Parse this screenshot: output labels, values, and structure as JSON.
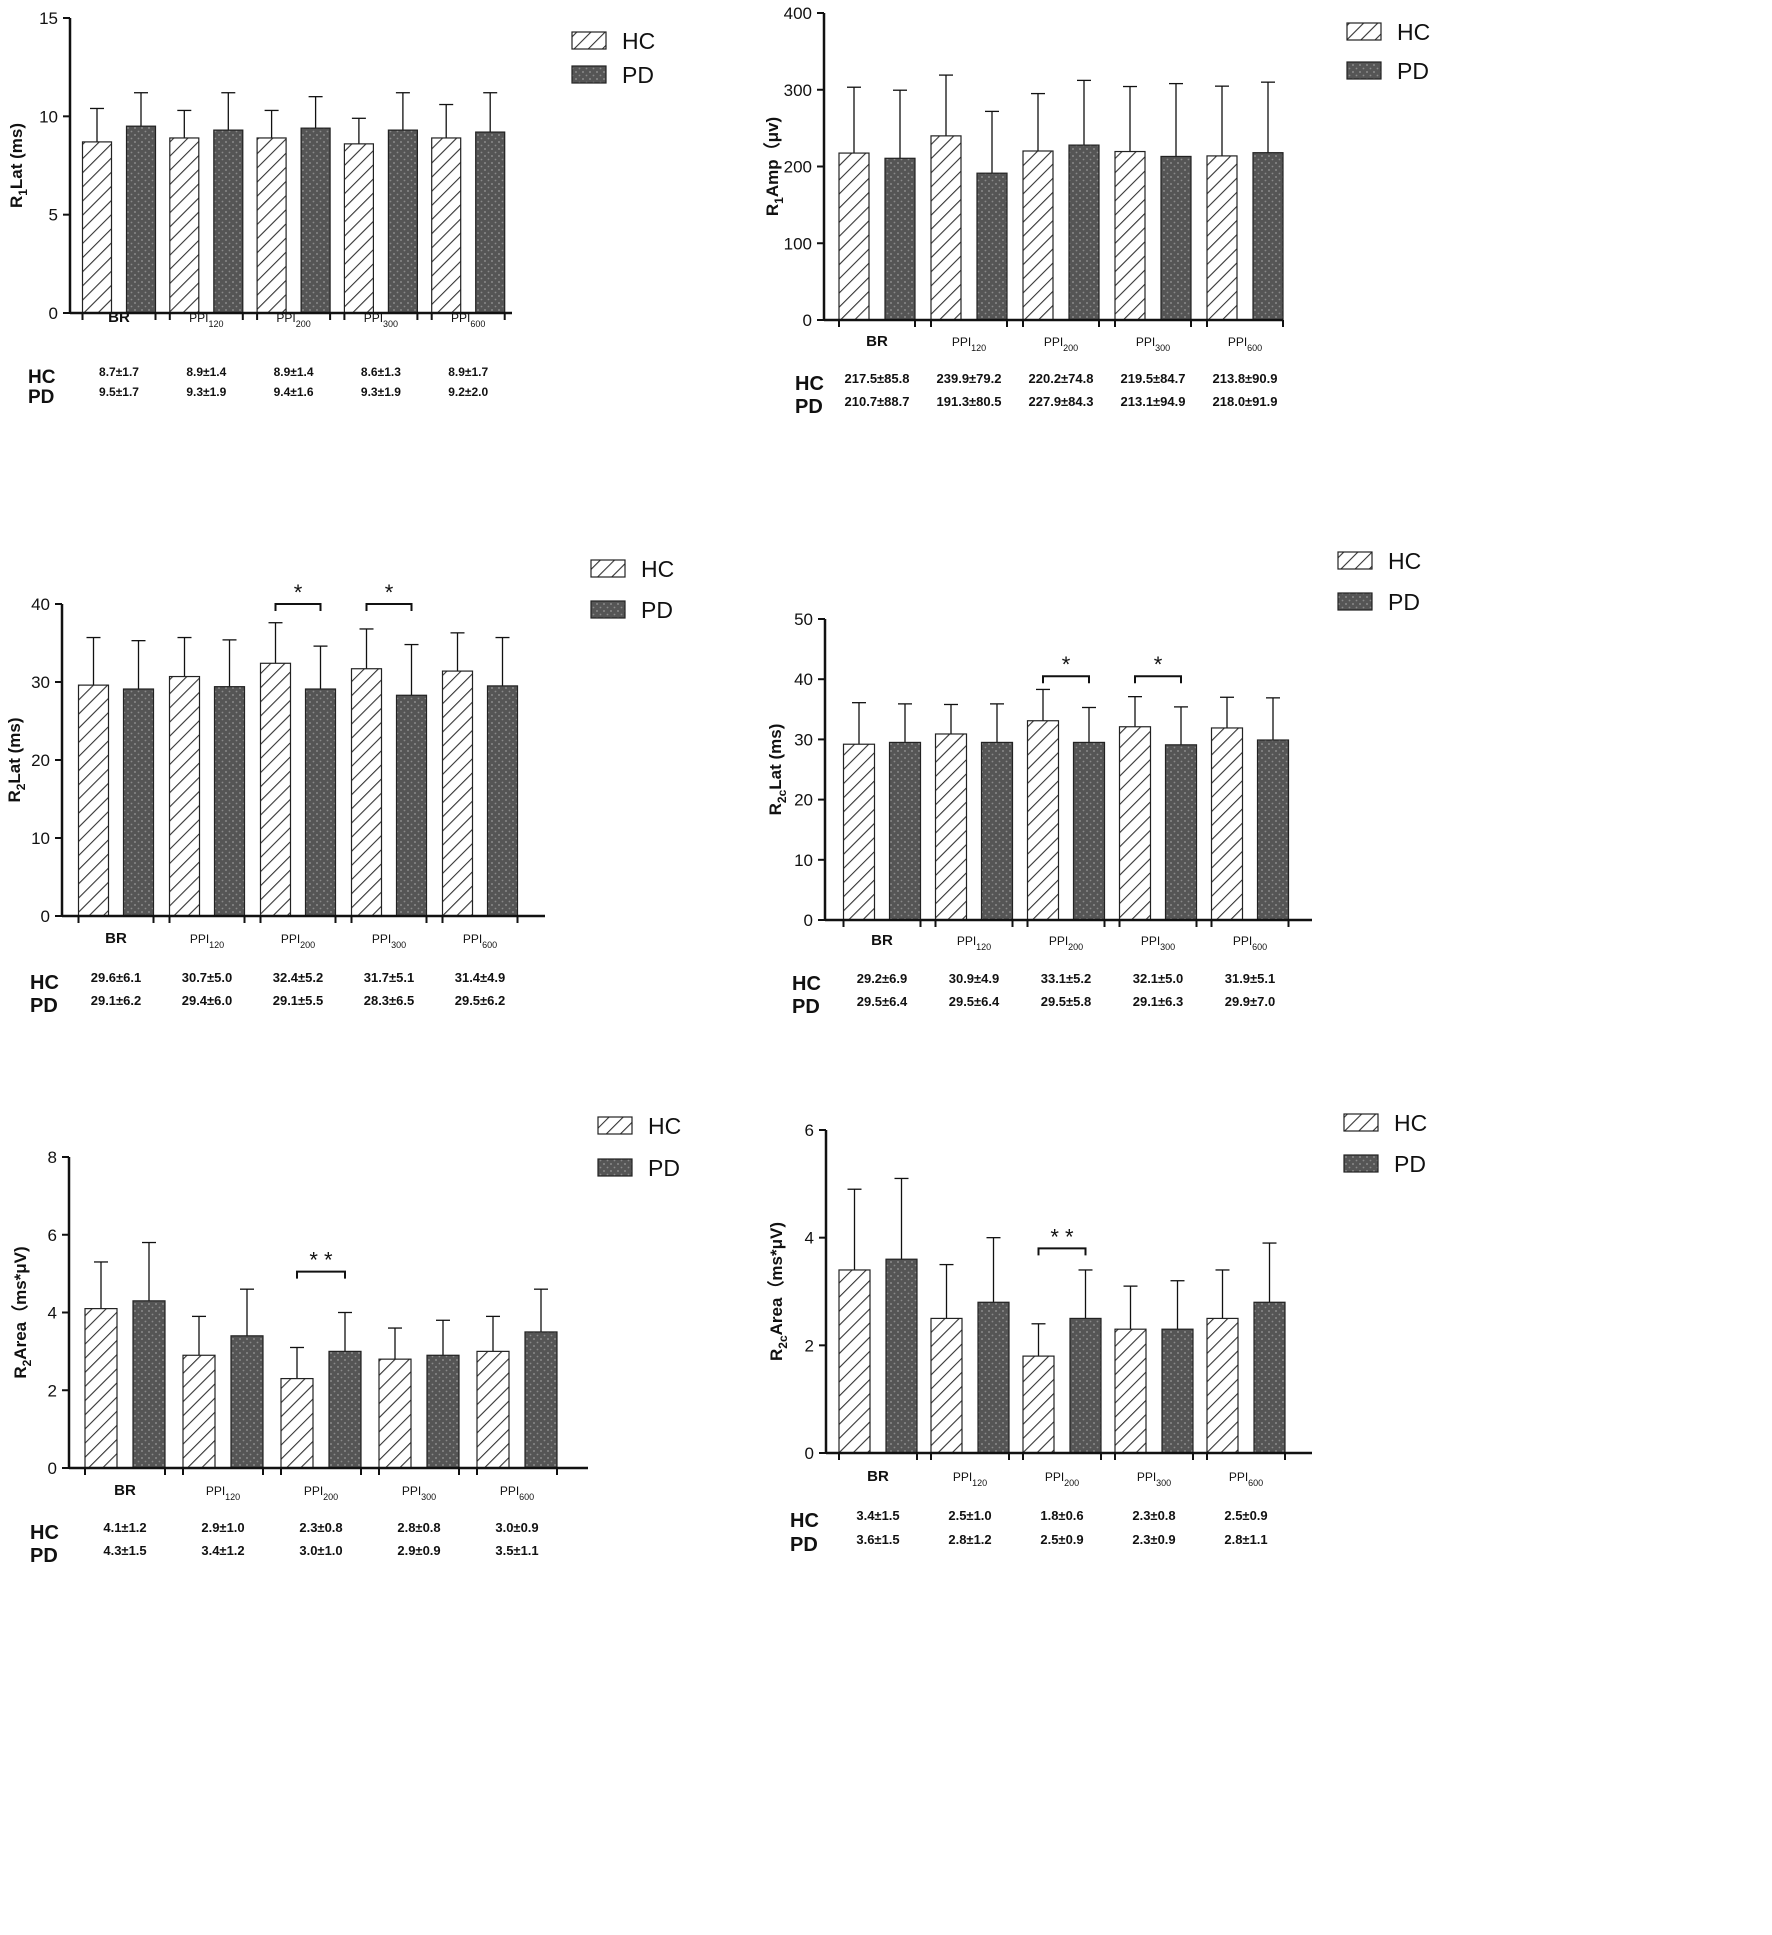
{
  "colors": {
    "hc_fill": "#ffffff",
    "pd_fill": "#555555",
    "axis": "#111111",
    "hatch": "#333333"
  },
  "legend_labels": {
    "hc": "HC",
    "pd": "PD"
  },
  "chart_data": [
    {
      "type": "bar",
      "ylabel": "R1Lat (ms)",
      "ylabel_main": "R",
      "ylabel_sub": "1",
      "ylabel_rest": "Lat (ms)",
      "ylim": [
        0,
        15
      ],
      "yticks": [
        0,
        5,
        10,
        15
      ],
      "categories": [
        "BR",
        "PPI120",
        "PPI200",
        "PPI300",
        "PPI600"
      ],
      "cat_main": [
        "BR",
        "PPI",
        "PPI",
        "PPI",
        "PPI"
      ],
      "cat_sub": [
        "",
        "120",
        "200",
        "300",
        "600"
      ],
      "series": [
        {
          "name": "HC",
          "values": [
            8.7,
            8.9,
            8.9,
            8.6,
            8.9
          ],
          "errors": [
            1.7,
            1.4,
            1.4,
            1.3,
            1.7
          ]
        },
        {
          "name": "PD",
          "values": [
            9.5,
            9.3,
            9.4,
            9.3,
            9.2
          ],
          "errors": [
            1.7,
            1.9,
            1.6,
            1.9,
            2.0
          ]
        }
      ],
      "significance": [],
      "table": {
        "hc_label": "HC",
        "pd_label": "PD",
        "hc": [
          "8.7±1.7",
          "8.9±1.4",
          "8.9±1.4",
          "8.6±1.3",
          "8.9±1.7"
        ],
        "pd": [
          "9.5±1.7",
          "9.3±1.9",
          "9.4±1.6",
          "9.3±1.9",
          "9.2±2.0"
        ]
      }
    },
    {
      "type": "bar",
      "ylabel": "R1Amp (μv)",
      "ylabel_main": "R",
      "ylabel_sub": "1",
      "ylabel_rest": "Amp（μv)",
      "ylim": [
        0,
        400
      ],
      "yticks": [
        0,
        100,
        200,
        300,
        400
      ],
      "categories": [
        "BR",
        "PPI120",
        "PPI200",
        "PPI300",
        "PPI600"
      ],
      "cat_main": [
        "BR",
        "PPI",
        "PPI",
        "PPI",
        "PPI"
      ],
      "cat_sub": [
        "",
        "120",
        "200",
        "300",
        "600"
      ],
      "series": [
        {
          "name": "HC",
          "values": [
            217.5,
            239.9,
            220.2,
            219.5,
            213.8
          ],
          "errors": [
            85.8,
            79.2,
            74.8,
            84.7,
            90.9
          ]
        },
        {
          "name": "PD",
          "values": [
            210.7,
            191.3,
            227.9,
            213.1,
            218.0
          ],
          "errors": [
            88.7,
            80.5,
            84.3,
            94.9,
            91.9
          ]
        }
      ],
      "significance": [],
      "table": {
        "hc_label": "HC",
        "pd_label": "PD",
        "hc": [
          "217.5±85.8",
          "239.9±79.2",
          "220.2±74.8",
          "219.5±84.7",
          "213.8±90.9"
        ],
        "pd": [
          "210.7±88.7",
          "191.3±80.5",
          "227.9±84.3",
          "213.1±94.9",
          "218.0±91.9"
        ]
      }
    },
    {
      "type": "bar",
      "ylabel": "R2Lat (ms)",
      "ylabel_main": "R",
      "ylabel_sub": "2",
      "ylabel_rest": "Lat (ms)",
      "ylim": [
        0,
        40
      ],
      "yticks": [
        0,
        10,
        20,
        30,
        40
      ],
      "categories": [
        "BR",
        "PPI120",
        "PPI200",
        "PPI300",
        "PPI600"
      ],
      "cat_main": [
        "BR",
        "PPI",
        "PPI",
        "PPI",
        "PPI"
      ],
      "cat_sub": [
        "",
        "120",
        "200",
        "300",
        "600"
      ],
      "series": [
        {
          "name": "HC",
          "values": [
            29.6,
            30.7,
            32.4,
            31.7,
            31.4
          ],
          "errors": [
            6.1,
            5.0,
            5.2,
            5.1,
            4.9
          ]
        },
        {
          "name": "PD",
          "values": [
            29.1,
            29.4,
            29.1,
            28.3,
            29.5
          ],
          "errors": [
            6.2,
            6.0,
            5.5,
            6.5,
            6.2
          ]
        }
      ],
      "significance": [
        {
          "category": 2,
          "label": "*",
          "at": 40
        },
        {
          "category": 3,
          "label": "*",
          "at": 40
        }
      ],
      "table": {
        "hc_label": "HC",
        "pd_label": "PD",
        "hc": [
          "29.6±6.1",
          "30.7±5.0",
          "32.4±5.2",
          "31.7±5.1",
          "31.4±4.9"
        ],
        "pd": [
          "29.1±6.2",
          "29.4±6.0",
          "29.1±5.5",
          "28.3±6.5",
          "29.5±6.2"
        ]
      }
    },
    {
      "type": "bar",
      "ylabel": "R2cLat (ms)",
      "ylabel_main": "R",
      "ylabel_sub": "2c",
      "ylabel_rest": "Lat (ms)",
      "ylim": [
        0,
        50
      ],
      "yticks": [
        0,
        10,
        20,
        30,
        40,
        50
      ],
      "categories": [
        "BR",
        "PPI120",
        "PPI200",
        "PPI300",
        "PPI600"
      ],
      "cat_main": [
        "BR",
        "PPI",
        "PPI",
        "PPI",
        "PPI"
      ],
      "cat_sub": [
        "",
        "120",
        "200",
        "300",
        "600"
      ],
      "series": [
        {
          "name": "HC",
          "values": [
            29.2,
            30.9,
            33.1,
            32.1,
            31.9
          ],
          "errors": [
            6.9,
            4.9,
            5.2,
            5.0,
            5.1
          ]
        },
        {
          "name": "PD",
          "values": [
            29.5,
            29.5,
            29.5,
            29.1,
            29.9
          ],
          "errors": [
            6.4,
            6.4,
            5.8,
            6.3,
            7.0
          ]
        }
      ],
      "significance": [
        {
          "category": 2,
          "label": "*",
          "at": 40.5
        },
        {
          "category": 3,
          "label": "*",
          "at": 40.5
        }
      ],
      "table": {
        "hc_label": "HC",
        "pd_label": "PD",
        "hc": [
          "29.2±6.9",
          "30.9±4.9",
          "33.1±5.2",
          "32.1±5.0",
          "31.9±5.1"
        ],
        "pd": [
          "29.5±6.4",
          "29.5±6.4",
          "29.5±5.8",
          "29.1±6.3",
          "29.9±7.0"
        ]
      }
    },
    {
      "type": "bar",
      "ylabel": "R2Area (ms*μV)",
      "ylabel_main": "R",
      "ylabel_sub": "2",
      "ylabel_rest": "Area（ms*μV)",
      "ylim": [
        0,
        8
      ],
      "yticks": [
        0,
        2,
        4,
        6,
        8
      ],
      "categories": [
        "BR",
        "PPI120",
        "PPI200",
        "PPI300",
        "PPI600"
      ],
      "cat_main": [
        "BR",
        "PPI",
        "PPI",
        "PPI",
        "PPI"
      ],
      "cat_sub": [
        "",
        "120",
        "200",
        "300",
        "600"
      ],
      "series": [
        {
          "name": "HC",
          "values": [
            4.1,
            2.9,
            2.3,
            2.8,
            3.0
          ],
          "errors": [
            1.2,
            1.0,
            0.8,
            0.8,
            0.9
          ]
        },
        {
          "name": "PD",
          "values": [
            4.3,
            3.4,
            3.0,
            2.9,
            3.5
          ],
          "errors": [
            1.5,
            1.2,
            1.0,
            0.9,
            1.1
          ]
        }
      ],
      "significance": [
        {
          "category": 2,
          "label": "* *",
          "at": 5.05
        }
      ],
      "table": {
        "hc_label": "HC",
        "pd_label": "PD",
        "hc": [
          "4.1±1.2",
          "2.9±1.0",
          "2.3±0.8",
          "2.8±0.8",
          "3.0±0.9"
        ],
        "pd": [
          "4.3±1.5",
          "3.4±1.2",
          "3.0±1.0",
          "2.9±0.9",
          "3.5±1.1"
        ]
      }
    },
    {
      "type": "bar",
      "ylabel": "R2cArea (ms*μV)",
      "ylabel_main": "R",
      "ylabel_sub": "2c",
      "ylabel_rest": "Area（ms*μV)",
      "ylim": [
        0,
        6
      ],
      "yticks": [
        0,
        2,
        4,
        6
      ],
      "categories": [
        "BR",
        "PPI120",
        "PPI200",
        "PPI300",
        "PPI600"
      ],
      "cat_main": [
        "BR",
        "PPI",
        "PPI",
        "PPI",
        "PPI"
      ],
      "cat_sub": [
        "",
        "120",
        "200",
        "300",
        "600"
      ],
      "series": [
        {
          "name": "HC",
          "values": [
            3.4,
            2.5,
            1.8,
            2.3,
            2.5
          ],
          "errors": [
            1.5,
            1.0,
            0.6,
            0.8,
            0.9
          ]
        },
        {
          "name": "PD",
          "values": [
            3.6,
            2.8,
            2.5,
            2.3,
            2.8
          ],
          "errors": [
            1.5,
            1.2,
            0.9,
            0.9,
            1.1
          ]
        }
      ],
      "significance": [
        {
          "category": 2,
          "label": "* *",
          "at": 3.8
        }
      ],
      "table": {
        "hc_label": "HC",
        "pd_label": "PD",
        "hc": [
          "3.4±1.5",
          "2.5±1.0",
          "1.8±0.6",
          "2.3±0.8",
          "2.5±0.9"
        ],
        "pd": [
          "3.6±1.5",
          "2.8±1.2",
          "2.5±0.9",
          "2.3±0.9",
          "2.8±1.1"
        ]
      }
    }
  ]
}
